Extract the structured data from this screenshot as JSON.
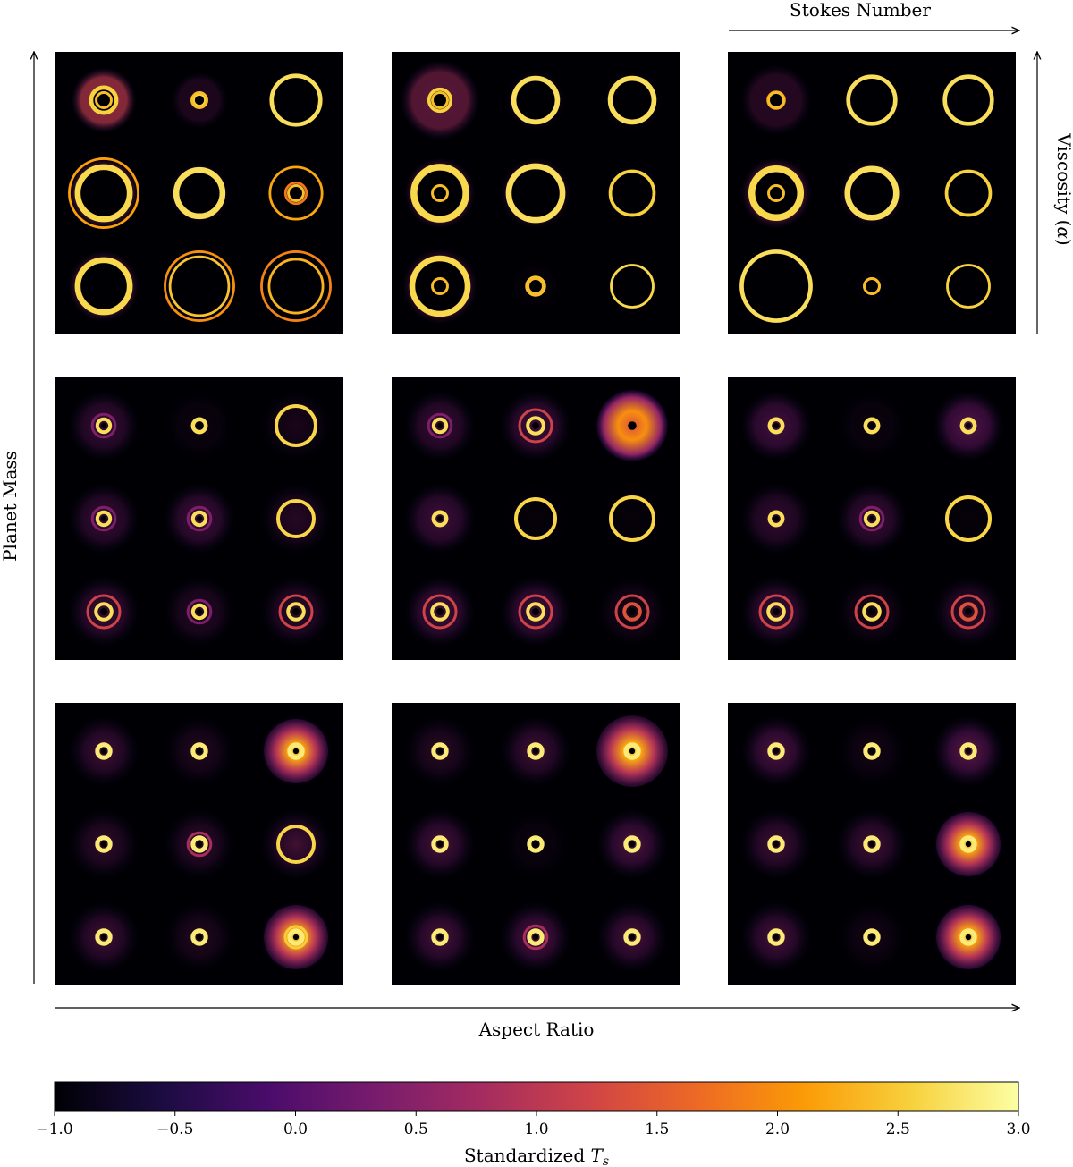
{
  "axes": {
    "stokes_label": "Stokes Number",
    "viscosity_label_prefix": "Viscosity (",
    "viscosity_label_symbol": "α",
    "viscosity_label_suffix": ")",
    "planet_mass_label": "Planet Mass",
    "aspect_ratio_label": "Aspect Ratio"
  },
  "colorbar": {
    "label_prefix": "Standardized ",
    "label_symbol": "T",
    "label_subscript": "s",
    "ticks": [
      "−1.0",
      "−0.5",
      "0.0",
      "0.5",
      "1.0",
      "1.5",
      "2.0",
      "2.5",
      "3.0"
    ],
    "colors": [
      "#000004",
      "#1b0c41",
      "#4a0c6b",
      "#781c6d",
      "#a52c60",
      "#cf4446",
      "#ed6925",
      "#fb9b06",
      "#f7d13d",
      "#fcffa4"
    ]
  },
  "grid": {
    "panels": [
      [
        [
          {
            "halo": 0.78,
            "ring": 0.3,
            "rw": 0.1,
            "core": "ring",
            "ringv": 0.9,
            "haloI": 0.75
          },
          {
            "halo": 0.68,
            "ring": 0.14,
            "rw": 0.06,
            "core": "ring",
            "ringv": 0.9,
            "haloI": 0.25
          },
          {
            "halo": 0.68,
            "ring": 0.58,
            "rw": 0.1,
            "core": "dark",
            "ringv": 1.0,
            "haloI": 0.1
          }
        ],
        [
          {
            "halo": 0.85,
            "ring": 0.62,
            "rw": 0.14,
            "core": "dark",
            "ringv": 0.95,
            "haloI": 0.7,
            "ring2": 0.82
          },
          {
            "halo": 0.72,
            "ring": 0.55,
            "rw": 0.14,
            "core": "dark",
            "ringv": 1.0,
            "haloI": 0.35
          },
          {
            "halo": 0.72,
            "ring": 0.62,
            "rw": 0.06,
            "core": "ring",
            "ringv": 0.6,
            "haloI": 0.1,
            "ring2": 0.25
          }
        ],
        [
          {
            "halo": 0.85,
            "ring": 0.62,
            "rw": 0.14,
            "core": "dark",
            "ringv": 0.95,
            "haloI": 0.6
          },
          {
            "halo": 0.8,
            "ring": 0.7,
            "rw": 0.06,
            "core": "dark",
            "ringv": 0.8,
            "haloI": 0.05,
            "ring2": 0.82
          },
          {
            "halo": 0.8,
            "ring": 0.64,
            "rw": 0.06,
            "core": "dark",
            "ringv": 0.7,
            "haloI": 0.05,
            "ring2": 0.82
          }
        ]
      ],
      [
        [
          {
            "halo": 0.95,
            "ring": 0.26,
            "rw": 0.08,
            "core": "ring",
            "ringv": 0.9,
            "haloI": 0.55
          },
          {
            "halo": 0.72,
            "ring": 0.52,
            "rw": 0.12,
            "core": "dark",
            "ringv": 1.0,
            "haloI": 0.2
          },
          {
            "halo": 0.72,
            "ring": 0.52,
            "rw": 0.12,
            "core": "dark",
            "ringv": 1.0,
            "haloI": 0.12
          }
        ],
        [
          {
            "halo": 0.85,
            "ring": 0.62,
            "rw": 0.16,
            "core": "ring",
            "ringv": 0.95,
            "haloI": 0.6
          },
          {
            "halo": 0.85,
            "ring": 0.64,
            "rw": 0.14,
            "core": "dark",
            "ringv": 1.0,
            "haloI": 0.45
          },
          {
            "halo": 0.68,
            "ring": 0.52,
            "rw": 0.08,
            "core": "dark",
            "ringv": 0.9,
            "haloI": 0.12
          }
        ],
        [
          {
            "halo": 0.9,
            "ring": 0.66,
            "rw": 0.14,
            "core": "ring",
            "ringv": 0.95,
            "haloI": 0.55
          },
          {
            "halo": 0.6,
            "ring": 0.22,
            "rw": 0.06,
            "core": "ring",
            "ringv": 0.8,
            "haloI": 0.05
          },
          {
            "halo": 0.6,
            "ring": 0.5,
            "rw": 0.06,
            "core": "dark",
            "ringv": 0.95,
            "haloI": 0.05
          }
        ]
      ],
      [
        [
          {
            "halo": 0.85,
            "ring": 0.2,
            "rw": 0.06,
            "core": "ring",
            "ringv": 0.55,
            "haloI": 0.3
          },
          {
            "halo": 0.68,
            "ring": 0.56,
            "rw": 0.1,
            "core": "dark",
            "ringv": 1.0,
            "haloI": 0.12
          },
          {
            "halo": 0.68,
            "ring": 0.56,
            "rw": 0.1,
            "core": "dark",
            "ringv": 1.0,
            "haloI": 0.15
          }
        ],
        [
          {
            "halo": 0.85,
            "ring": 0.58,
            "rw": 0.16,
            "core": "ring",
            "ringv": 0.95,
            "haloI": 0.55
          },
          {
            "halo": 0.8,
            "ring": 0.58,
            "rw": 0.14,
            "core": "dark",
            "ringv": 1.0,
            "haloI": 0.3
          },
          {
            "halo": 0.62,
            "ring": 0.52,
            "rw": 0.08,
            "core": "dark",
            "ringv": 0.9,
            "haloI": 0.06
          }
        ],
        [
          {
            "halo": 0.88,
            "ring": 0.82,
            "rw": 0.1,
            "core": "dark",
            "ringv": 1.0,
            "haloI": 0.45
          },
          {
            "halo": 0.4,
            "ring": 0.18,
            "rw": 0.06,
            "core": "ring",
            "ringv": 0.6,
            "haloI": 0.05
          },
          {
            "halo": 0.55,
            "ring": 0.5,
            "rw": 0.06,
            "core": "dark",
            "ringv": 0.9,
            "haloI": 0.04
          }
        ]
      ]
    ]
  },
  "mid": {
    "cells": [
      [
        [
          {
            "t": "rd",
            "I": 0.45
          },
          {
            "t": "dot",
            "I": 0.1
          },
          {
            "t": "ring",
            "r": 0.55,
            "I": 0.2
          }
        ],
        [
          {
            "t": "rd",
            "I": 0.45
          },
          {
            "t": "rd",
            "I": 0.5
          },
          {
            "t": "dark",
            "r": 0.5,
            "I": 0.3
          }
        ],
        [
          {
            "t": "rr",
            "I": 0.45
          },
          {
            "t": "rd",
            "I": 0.3
          },
          {
            "t": "rr",
            "I": 0.35
          }
        ]
      ],
      [
        [
          {
            "t": "rd",
            "I": 0.45
          },
          {
            "t": "rr",
            "I": 0.5
          },
          {
            "t": "big",
            "I": 0.7
          }
        ],
        [
          {
            "t": "dot",
            "I": 0.5
          },
          {
            "t": "ring",
            "r": 0.55,
            "I": 0.05
          },
          {
            "t": "ring",
            "r": 0.6,
            "I": 0.05
          }
        ],
        [
          {
            "t": "rr",
            "I": 0.5
          },
          {
            "t": "rr",
            "I": 0.5
          },
          {
            "t": "rr2",
            "I": 0.2
          }
        ]
      ],
      [
        [
          {
            "t": "dot",
            "I": 0.55
          },
          {
            "t": "dot",
            "I": 0.1
          },
          {
            "t": "dot",
            "I": 0.65
          }
        ],
        [
          {
            "t": "dot",
            "I": 0.4
          },
          {
            "t": "rd",
            "I": 0.45
          },
          {
            "t": "ring",
            "r": 0.6,
            "I": 0.05
          }
        ],
        [
          {
            "t": "rr",
            "I": 0.45
          },
          {
            "t": "rr",
            "I": 0.2
          },
          {
            "t": "rr2",
            "I": 0.35
          }
        ]
      ]
    ]
  },
  "bot": {
    "cells": [
      [
        [
          {
            "t": "dot",
            "I": 0.45
          },
          {
            "t": "dot",
            "I": 0.25
          },
          {
            "t": "glow",
            "I": 0.85
          }
        ],
        [
          {
            "t": "dot",
            "I": 0.35
          },
          {
            "t": "rd",
            "I": 0.35
          },
          {
            "t": "ring",
            "r": 0.5,
            "I": 0.45
          }
        ],
        [
          {
            "t": "dot",
            "I": 0.45
          },
          {
            "t": "dot",
            "I": 0.25
          },
          {
            "t": "ringglow",
            "I": 0.75
          }
        ]
      ],
      [
        [
          {
            "t": "dot",
            "I": 0.3
          },
          {
            "t": "dot",
            "I": 0.45
          },
          {
            "t": "bigglow",
            "I": 0.95
          }
        ],
        [
          {
            "t": "dot",
            "I": 0.5
          },
          {
            "t": "dot",
            "I": 0.1
          },
          {
            "t": "dot",
            "I": 0.55
          }
        ],
        [
          {
            "t": "dot",
            "I": 0.5
          },
          {
            "t": "rd",
            "I": 0.55
          },
          {
            "t": "dot",
            "I": 0.5
          }
        ]
      ],
      [
        [
          {
            "t": "dot",
            "I": 0.55
          },
          {
            "t": "dot",
            "I": 0.15
          },
          {
            "t": "dot",
            "I": 0.65
          }
        ],
        [
          {
            "t": "dot",
            "I": 0.45
          },
          {
            "t": "dot",
            "I": 0.45
          },
          {
            "t": "glow",
            "I": 0.85
          }
        ],
        [
          {
            "t": "dot",
            "I": 0.5
          },
          {
            "t": "dot",
            "I": 0.15
          },
          {
            "t": "glow",
            "I": 0.8
          }
        ]
      ]
    ]
  }
}
